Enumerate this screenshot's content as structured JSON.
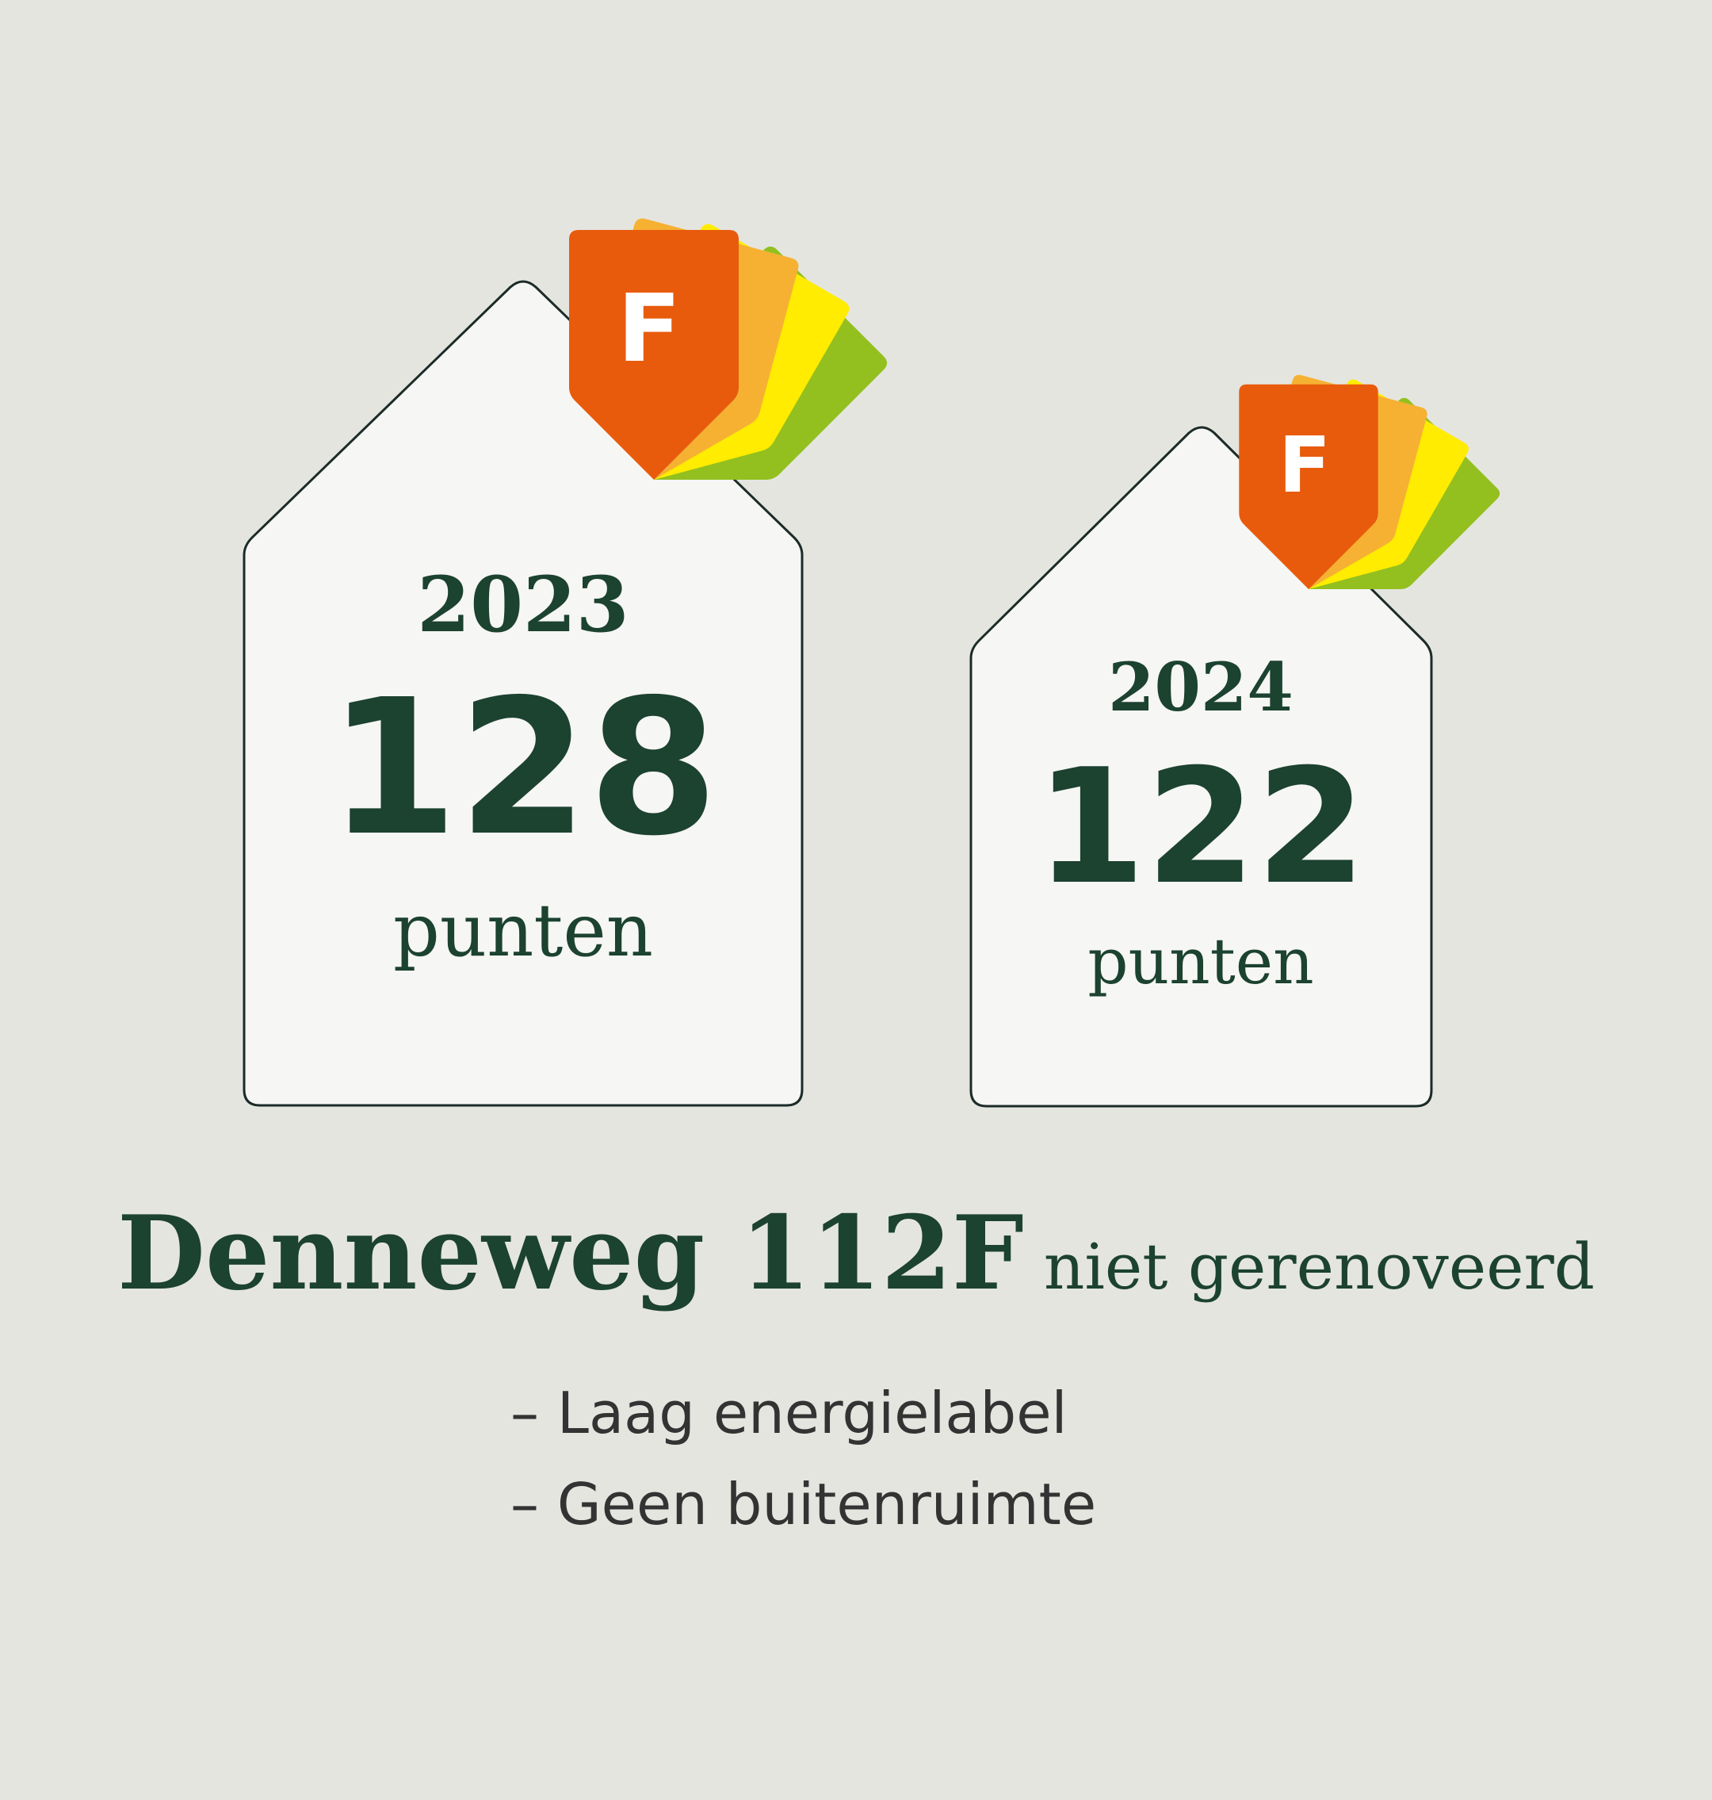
{
  "colors": {
    "background": "#e5e5e0",
    "house_fill": "#f6f6f4",
    "house_stroke": "#1b2b28",
    "text_green": "#1c4230",
    "label_f": "#e85b0d",
    "label_e": "#f6b133",
    "label_d": "#ffec00",
    "label_c": "#93c01f",
    "bullet_text": "#333333"
  },
  "houses": [
    {
      "year": "2023",
      "points": "128",
      "unit": "punten",
      "energy_label": "F"
    },
    {
      "year": "2024",
      "points": "122",
      "unit": "punten",
      "energy_label": "F"
    }
  ],
  "title": {
    "address": "Denneweg 112F",
    "status": "niet gerenoveerd"
  },
  "bullets": [
    "– Laag energielabel",
    "– Geen buitenruimte"
  ]
}
